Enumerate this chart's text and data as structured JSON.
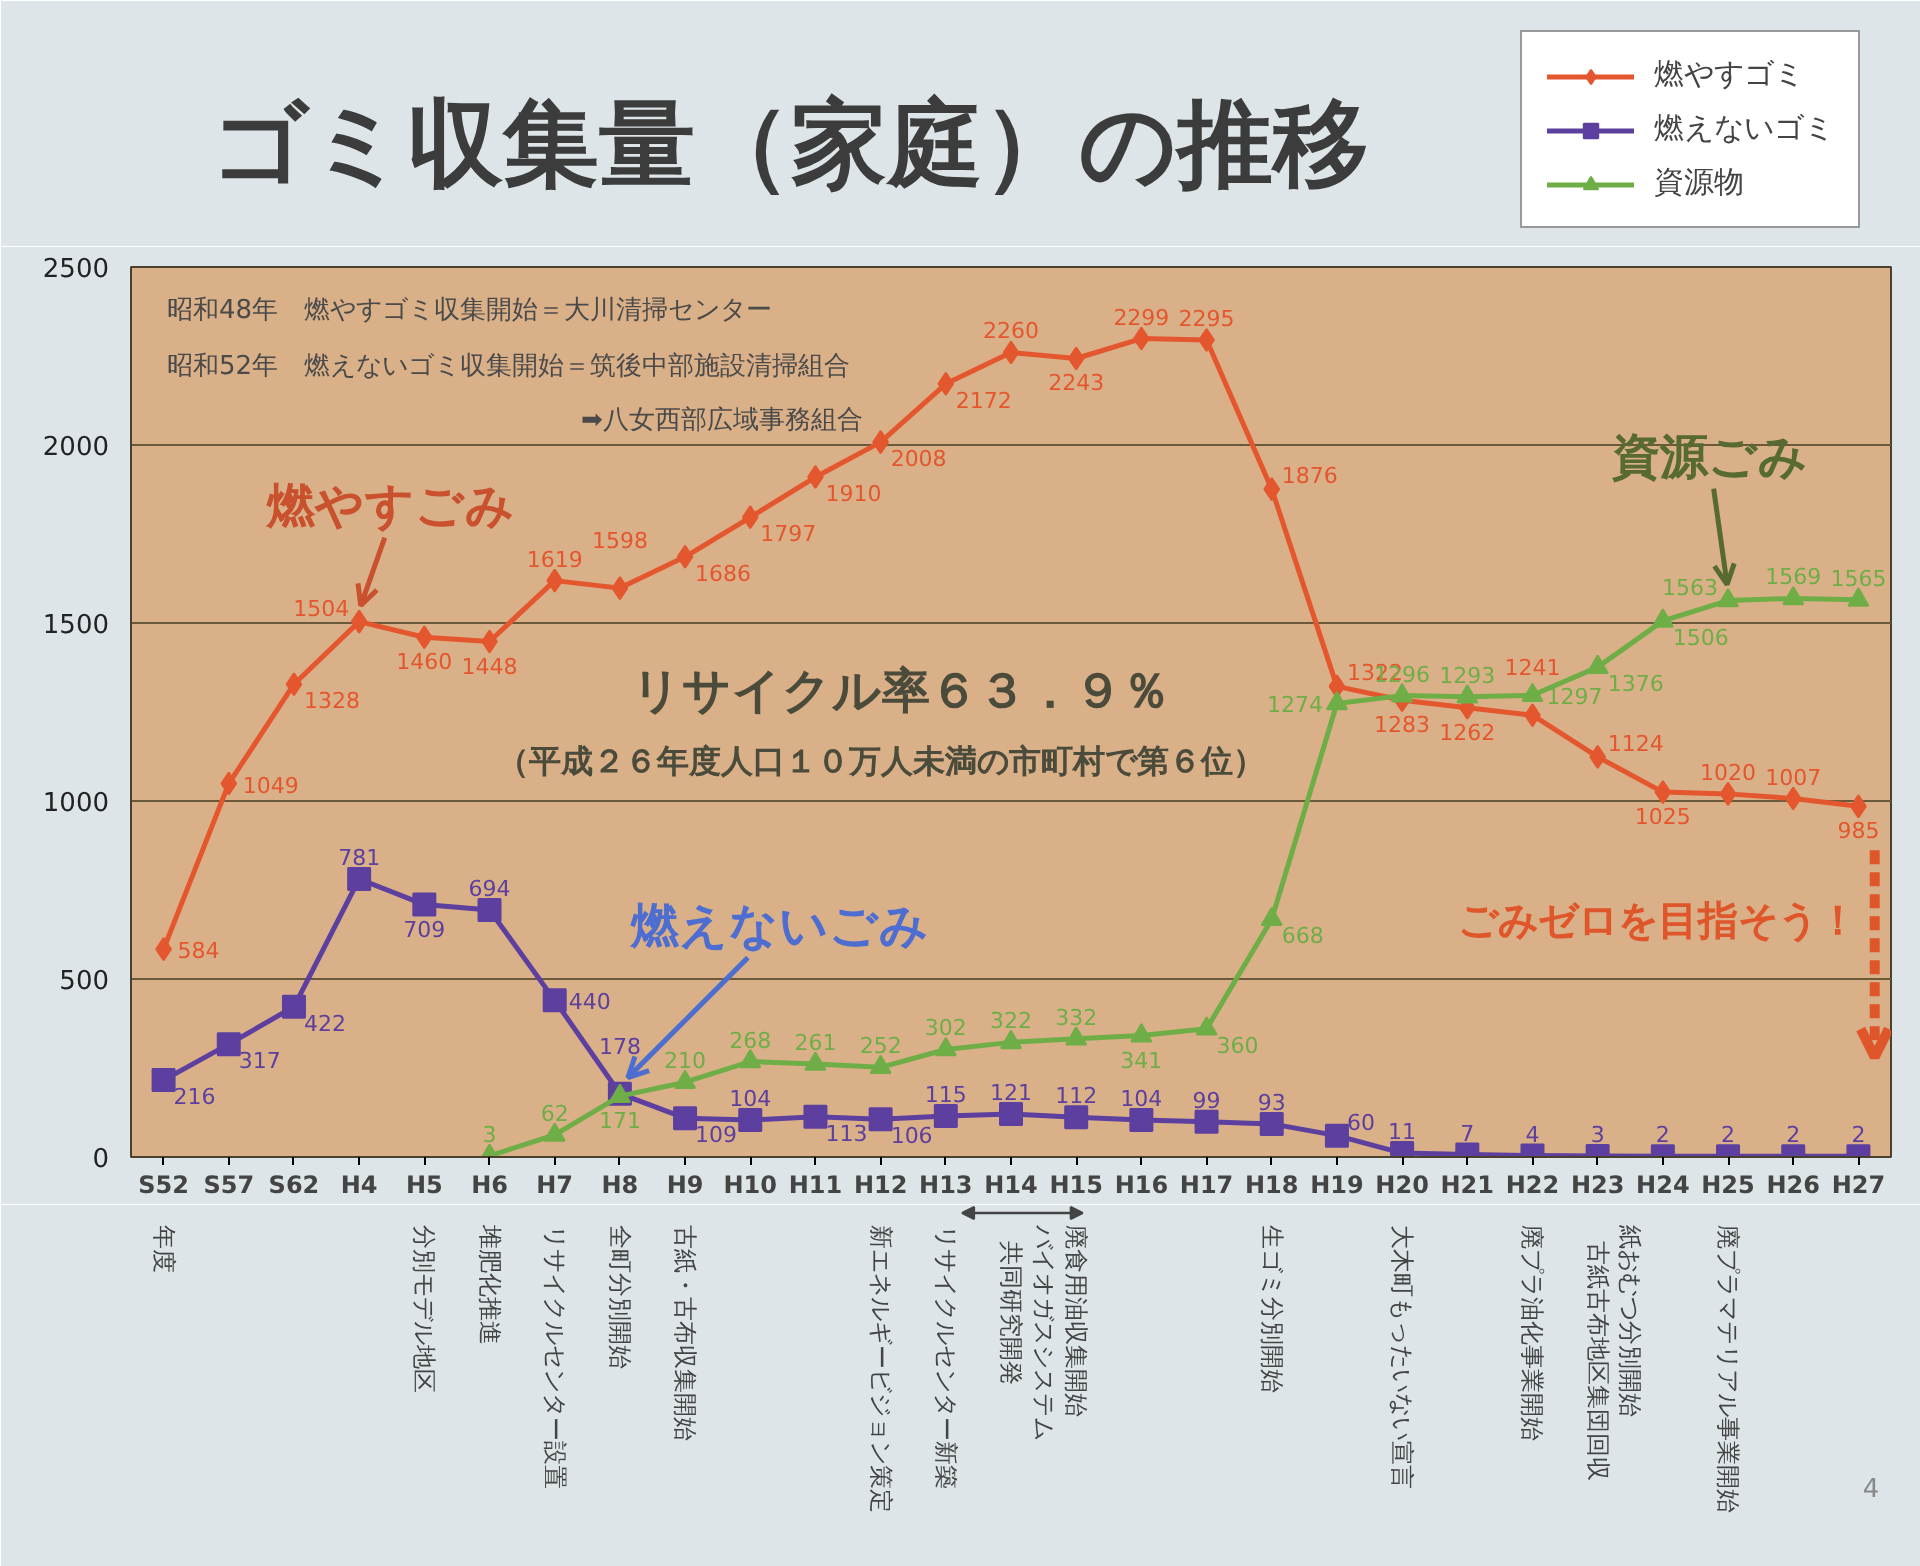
{
  "chart_data": {
    "type": "line",
    "title": "ゴミ収集量（家庭）の推移",
    "categories": [
      "S52",
      "S57",
      "S62",
      "H4",
      "H5",
      "H6",
      "H7",
      "H8",
      "H9",
      "H10",
      "H11",
      "H12",
      "H13",
      "H14",
      "H15",
      "H16",
      "H17",
      "H18",
      "H19",
      "H20",
      "H21",
      "H22",
      "H23",
      "H24",
      "H25",
      "H26",
      "H27"
    ],
    "series": [
      {
        "name": "燃やすゴミ",
        "color": "#e4572e",
        "marker": "diamond",
        "values": [
          584,
          1049,
          1328,
          1504,
          1460,
          1448,
          1619,
          1598,
          1686,
          1797,
          1910,
          2008,
          2172,
          2260,
          2243,
          2299,
          2295,
          1876,
          1322,
          1283,
          1262,
          1241,
          1124,
          1025,
          1020,
          1007,
          985
        ]
      },
      {
        "name": "燃えないゴミ",
        "color": "#5c3f9e",
        "marker": "square",
        "values": [
          216,
          317,
          422,
          781,
          709,
          694,
          440,
          178,
          109,
          104,
          113,
          106,
          115,
          121,
          112,
          104,
          99,
          93,
          60,
          11,
          7,
          4,
          3,
          2,
          2,
          2,
          2
        ]
      },
      {
        "name": "資源物",
        "color": "#6fae47",
        "marker": "triangle",
        "values": [
          null,
          null,
          null,
          null,
          null,
          3,
          62,
          171,
          210,
          268,
          261,
          252,
          302,
          322,
          332,
          341,
          360,
          668,
          1274,
          1296,
          1293,
          1297,
          1376,
          1506,
          1563,
          1569,
          1565
        ]
      }
    ],
    "ylim": [
      0,
      2500
    ],
    "yticks": [
      0,
      500,
      1000,
      1500,
      2000,
      2500
    ],
    "grid": "y",
    "legend": "top right",
    "data_labels": true,
    "annotations": [
      "昭和48年　燃やすゴミ収集開始＝大川清掃センター",
      "昭和52年　燃えないゴミ収集開始＝筑後中部施設清掃組合",
      "➡八女西部広域事務組合",
      {
        "text": "燃やすごみ",
        "x": "H4",
        "y": 1504
      },
      {
        "text": "燃えないごみ",
        "x": "H8",
        "y": 178
      },
      {
        "text": "資源ごみ",
        "x": "H25",
        "y": 1563
      },
      "リサイクル率６３．９％",
      "（平成２６年度人口１０万人未満の市町村で第６位）",
      {
        "text": "ごみゼロを目指そう！",
        "x": "H27",
        "y": 985
      },
      "年度",
      "分別モデル地区",
      "堆肥化推進",
      "リサイクルセンター設置",
      "全町分別開始",
      "古紙・古布収集開始",
      "新エネルギービジョン策定",
      "リサイクルセンター新築",
      "バイオガスシステム",
      "共同研究開発",
      "廃食用油収集開始",
      "生ゴミ分別開始",
      "大木町もったいない宣言",
      "廃プラ油化事業開始",
      "紙おむつ分別開始",
      "古紙古布地区集団回収",
      "廃プラマテリアル事業開始",
      "4"
    ]
  }
}
